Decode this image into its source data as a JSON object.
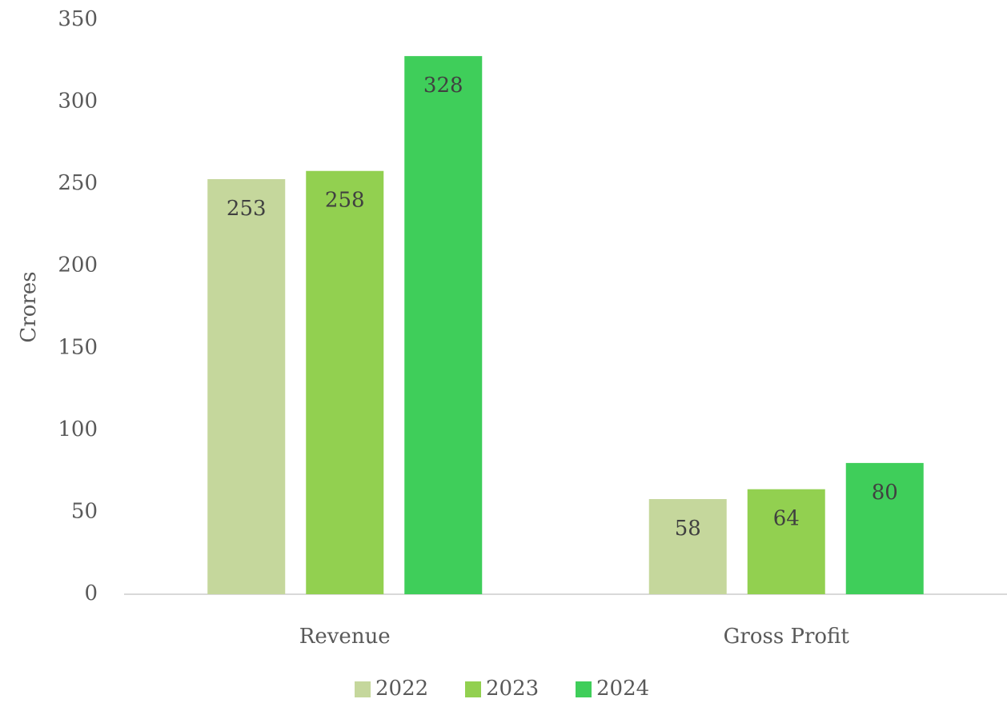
{
  "chart_data": {
    "type": "bar",
    "y_label": "Crores",
    "categories": [
      "Revenue",
      "Gross Profit"
    ],
    "series": [
      {
        "name": "2022",
        "color": "#c5d79c",
        "values": [
          253,
          58
        ]
      },
      {
        "name": "2023",
        "color": "#92d050",
        "values": [
          258,
          64
        ]
      },
      {
        "name": "2024",
        "color": "#3fce5a",
        "values": [
          328,
          80
        ]
      }
    ],
    "ylim": [
      0,
      350
    ],
    "yticks": [
      0,
      50,
      100,
      150,
      200,
      250,
      300,
      350
    ],
    "grid": false,
    "legend": "bottom"
  }
}
